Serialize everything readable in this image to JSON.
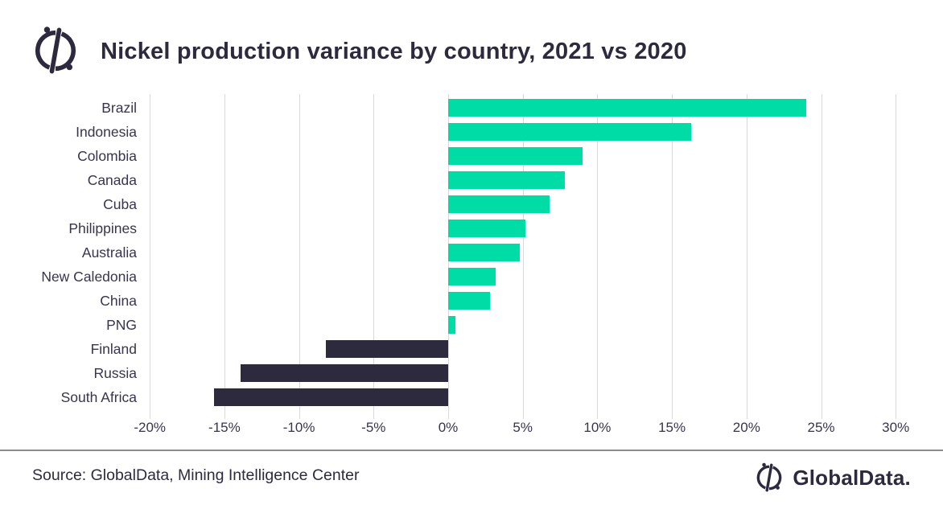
{
  "header": {
    "title": "Nickel production variance by country, 2021 vs 2020"
  },
  "footer": {
    "source": "Source: GlobalData, Mining Intelligence Center",
    "brand": "GlobalData."
  },
  "icons": {
    "logo": "globaldata-compass-mark"
  },
  "colors": {
    "positive_bar": "#00DCA5",
    "negative_bar": "#2E2A3E",
    "title_text": "#2E2A3E",
    "axis_text": "#39344E",
    "gridline": "#D9D9D9",
    "divider": "#8C8C8C",
    "background": "#FFFFFF"
  },
  "chart_data": {
    "type": "bar",
    "orientation": "horizontal",
    "title": "Nickel production variance by country, 2021 vs 2020",
    "categories": [
      "Brazil",
      "Indonesia",
      "Colombia",
      "Canada",
      "Cuba",
      "Philippines",
      "Australia",
      "New Caledonia",
      "China",
      "PNG",
      "Finland",
      "Russia",
      "South Africa"
    ],
    "values": [
      24,
      16.3,
      9,
      7.8,
      6.8,
      5.2,
      4.8,
      3.2,
      2.8,
      0.5,
      -8.2,
      -13.9,
      -15.7
    ],
    "unit": "%",
    "xlabel": "",
    "ylabel": "",
    "xlim": [
      -20,
      30
    ],
    "x_ticks": [
      "-20%",
      "-15%",
      "-10%",
      "-5%",
      "0%",
      "5%",
      "10%",
      "15%",
      "20%",
      "25%",
      "30%"
    ],
    "x_tick_values": [
      -20,
      -15,
      -10,
      -5,
      0,
      5,
      10,
      15,
      20,
      25,
      30
    ],
    "grid": "vertical-only",
    "legend": "none",
    "positive_color": "#00DCA5",
    "negative_color": "#2E2A3E"
  }
}
